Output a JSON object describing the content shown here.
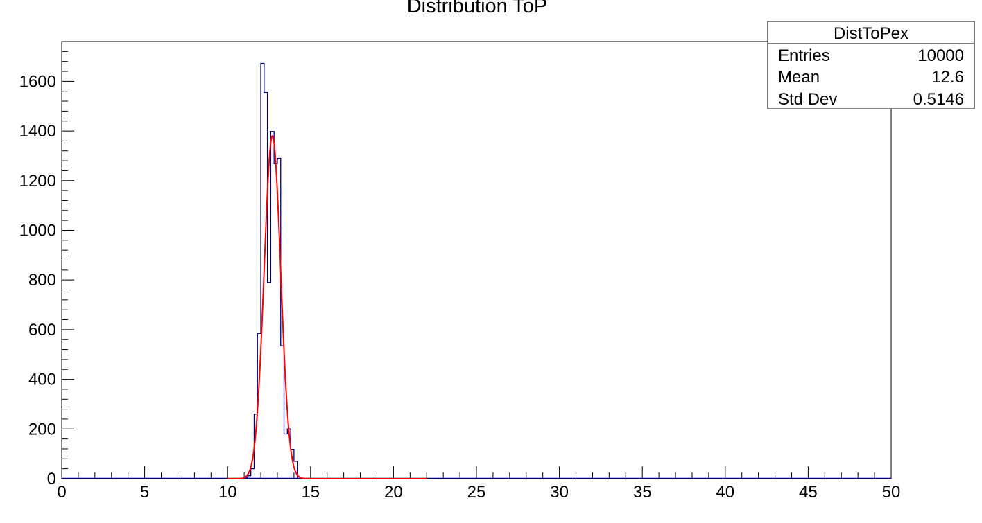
{
  "chart_data": {
    "type": "bar",
    "title": "Distribution ToP",
    "xlabel": "",
    "ylabel": "",
    "xlim": [
      0,
      50
    ],
    "ylim": [
      0,
      1760
    ],
    "bin_width": 0.2,
    "x_ticks": [
      "0",
      "5",
      "10",
      "15",
      "20",
      "25",
      "30",
      "35",
      "40",
      "45",
      "50"
    ],
    "y_ticks": [
      "0",
      "200",
      "400",
      "600",
      "800",
      "1000",
      "1200",
      "1400",
      "1600"
    ],
    "grid": false,
    "legend": "top-right",
    "histogram": {
      "bin_edges_start": [
        11.0,
        11.2,
        11.4,
        11.6,
        11.8,
        12.0,
        12.2,
        12.4,
        12.6,
        12.8,
        13.0,
        13.2,
        13.4,
        13.6,
        13.8,
        14.0
      ],
      "counts": [
        5,
        12,
        40,
        260,
        585,
        1672,
        1555,
        790,
        1398,
        1268,
        1290,
        535,
        180,
        200,
        118,
        70
      ]
    },
    "fit": {
      "type": "gaussian",
      "color": "#ff0000",
      "constant": 1380,
      "mean": 12.7,
      "sigma": 0.5,
      "range": [
        10.0,
        22.0
      ]
    },
    "histogram_color": "#000080",
    "stats_box": {
      "name": "DistToPex",
      "rows": [
        {
          "label": "Entries",
          "value": "10000"
        },
        {
          "label": "Mean",
          "value": "12.6"
        },
        {
          "label": "Std Dev",
          "value": "0.5146"
        }
      ]
    }
  }
}
